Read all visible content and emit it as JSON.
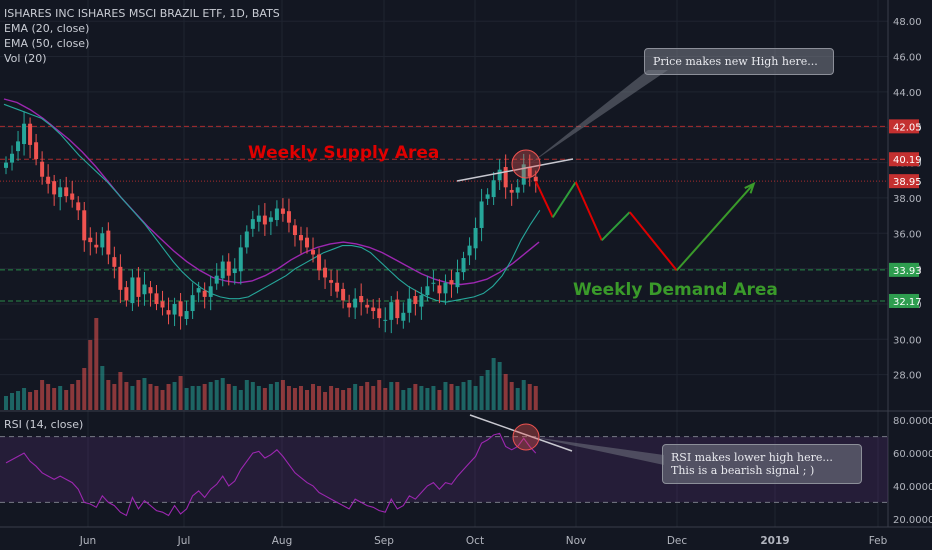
{
  "symbol": {
    "title": "ISHARES INC ISHARES MSCI BRAZIL ETF, 1D, BATS",
    "indicators": [
      "EMA (20, close)",
      "EMA (50, close)",
      "Vol (20)"
    ],
    "rsi_label": "RSI (14, close)"
  },
  "annotations": {
    "supply": "Weekly Supply Area",
    "demand": "Weekly Demand Area",
    "price_note": "Price makes new High here...",
    "rsi_note_line1": "RSI makes lower high here...",
    "rsi_note_line2": "This is a bearish signal ; )"
  },
  "colors": {
    "background": "#131722",
    "up": "#26a69a",
    "down": "#ef5350",
    "ema20": "#26a69a",
    "ema50": "#9c27b0",
    "supply_text": "#e00000",
    "demand_text": "#3a9a2a",
    "level_red": "#c43030",
    "level_green": "#2e9d4f",
    "rsi_line": "#9c27b0"
  },
  "chart_data": [
    {
      "type": "candlestick",
      "price_axis": {
        "ticks": [
          "48.00",
          "46.00",
          "44.00",
          "42.00",
          "40.00",
          "38.00",
          "36.00",
          "34.00",
          "32.00",
          "30.00",
          "28.00"
        ],
        "range": [
          26.0,
          49.2
        ]
      },
      "time_axis": {
        "labels": [
          "Jun",
          "Jul",
          "Aug",
          "Sep",
          "Oct",
          "Nov",
          "Dec",
          "2019",
          "Feb"
        ]
      },
      "levels": [
        {
          "value": 42.05,
          "label": "42.05",
          "color": "#c43030",
          "style": "dashed"
        },
        {
          "value": 40.19,
          "label": "40.19",
          "color": "#c43030",
          "style": "dashed"
        },
        {
          "value": 38.95,
          "label": "38.95",
          "color": "#c43030",
          "style": "dotted"
        },
        {
          "value": 33.93,
          "label": "33.93",
          "color": "#2e9d4f",
          "style": "dashed"
        },
        {
          "value": 32.17,
          "label": "32.17",
          "color": "#2e9d4f",
          "style": "dashed"
        }
      ],
      "closes": [
        40.0,
        40.5,
        41.2,
        42.2,
        41.0,
        40.2,
        39.2,
        38.8,
        38.2,
        38.6,
        38.1,
        37.9,
        37.3,
        35.6,
        35.5,
        35.2,
        36.0,
        34.8,
        34.1,
        32.8,
        32.2,
        33.5,
        32.4,
        33.1,
        32.6,
        32.0,
        31.8,
        31.4,
        32.0,
        31.3,
        31.6,
        32.5,
        32.9,
        32.4,
        33.0,
        33.6,
        34.4,
        33.6,
        34.0,
        35.2,
        36.1,
        36.8,
        37.0,
        36.5,
        36.9,
        37.4,
        37.1,
        36.6,
        35.9,
        35.6,
        35.2,
        34.8,
        33.9,
        33.5,
        33.2,
        32.7,
        32.2,
        31.8,
        32.3,
        32.1,
        31.8,
        31.6,
        31.2,
        31.1,
        32.1,
        31.2,
        31.5,
        32.3,
        32.0,
        32.5,
        33.0,
        33.2,
        32.6,
        33.2,
        33.1,
        33.8,
        34.6,
        35.3,
        36.3,
        37.8,
        38.2,
        39.0,
        39.6,
        38.6,
        38.3,
        38.6,
        39.9,
        39.2,
        38.95
      ],
      "ema20": [
        43.3,
        43.1,
        42.9,
        42.7,
        42.5,
        42.1,
        41.6,
        41.0,
        40.4,
        39.9,
        39.4,
        38.9,
        38.3,
        37.7,
        37.1,
        36.5,
        35.8,
        35.1,
        34.4,
        33.8,
        33.3,
        32.9,
        32.6,
        32.4,
        32.3,
        32.3,
        32.4,
        32.7,
        33.0,
        33.3,
        33.6,
        34.0,
        34.3,
        34.6,
        34.9,
        35.1,
        35.3,
        35.3,
        35.2,
        34.9,
        34.4,
        33.9,
        33.4,
        33.0,
        32.7,
        32.4,
        32.2,
        32.1,
        32.2,
        32.3,
        32.4,
        32.6,
        33.0,
        33.6,
        34.5,
        35.6,
        36.5,
        37.3
      ],
      "ema20_x": [
        0,
        10,
        20,
        30,
        40,
        50,
        60,
        70,
        80,
        90,
        100,
        110,
        120,
        130,
        140,
        150,
        160,
        170,
        180,
        190,
        200,
        210,
        220,
        230,
        240,
        250,
        260,
        270,
        280,
        290,
        300,
        310,
        320,
        330,
        340,
        350,
        360,
        370,
        380,
        390,
        400,
        410,
        420,
        430,
        440,
        450,
        460,
        470,
        480,
        490,
        500,
        510,
        520,
        530,
        540,
        550,
        560,
        570
      ],
      "ema50": [
        43.6,
        43.4,
        43.0,
        42.5,
        41.9,
        41.3,
        40.6,
        39.8,
        38.9,
        38.0,
        37.2,
        36.4,
        35.7,
        35.0,
        34.4,
        33.9,
        33.5,
        33.3,
        33.2,
        33.3,
        33.6,
        34.0,
        34.5,
        34.9,
        35.2,
        35.4,
        35.5,
        35.4,
        35.2,
        34.9,
        34.5,
        34.1,
        33.7,
        33.4,
        33.2,
        33.1,
        33.2,
        33.4,
        33.8,
        34.3,
        34.9,
        35.5
      ],
      "ema50_x": [
        0,
        15,
        30,
        45,
        60,
        75,
        90,
        105,
        120,
        135,
        150,
        165,
        180,
        195,
        210,
        225,
        240,
        255,
        270,
        285,
        300,
        315,
        330,
        345,
        360,
        375,
        390,
        405,
        420,
        435,
        450,
        465,
        480,
        495,
        510,
        525,
        540,
        555,
        570,
        585,
        600,
        615
      ],
      "volume": [
        14,
        17,
        19,
        22,
        18,
        20,
        30,
        26,
        22,
        24,
        20,
        26,
        30,
        42,
        70,
        92,
        44,
        30,
        26,
        38,
        28,
        24,
        30,
        32,
        26,
        24,
        20,
        26,
        28,
        34,
        22,
        24,
        24,
        26,
        28,
        30,
        32,
        26,
        24,
        20,
        30,
        28,
        24,
        22,
        26,
        28,
        30,
        24,
        22,
        24,
        20,
        26,
        24,
        18,
        24,
        22,
        20,
        22,
        26,
        24,
        28,
        24,
        30,
        22,
        28,
        28,
        20,
        22,
        26,
        24,
        22,
        24,
        20,
        28,
        26,
        24,
        28,
        30,
        24,
        34,
        40,
        52,
        48,
        36,
        28,
        22,
        30,
        26,
        24
      ],
      "projection": [
        {
          "x_offset": 0,
          "price": 38.95
        },
        {
          "x_offset": 17,
          "price": 36.9
        },
        {
          "x_offset": 40,
          "price": 38.9
        },
        {
          "x_offset": 66,
          "price": 35.6
        },
        {
          "x_offset": 94,
          "price": 37.2
        },
        {
          "x_offset": 141,
          "price": 33.9
        },
        {
          "x_offset": 218,
          "price": 38.8
        }
      ]
    },
    {
      "type": "line",
      "name": "RSI (14, close)",
      "y_axis": {
        "ticks": [
          "80.0000",
          "60.0000",
          "40.0000",
          "20.0000"
        ],
        "range": [
          15,
          85
        ]
      },
      "bands": [
        70,
        30
      ],
      "values": [
        54,
        56,
        58,
        60,
        55,
        52,
        48,
        46,
        44,
        46,
        44,
        42,
        38,
        30,
        29,
        27,
        34,
        30,
        28,
        24,
        22,
        33,
        26,
        31,
        28,
        25,
        24,
        22,
        28,
        23,
        26,
        34,
        37,
        33,
        38,
        41,
        46,
        40,
        43,
        50,
        55,
        60,
        61,
        57,
        59,
        62,
        58,
        53,
        48,
        45,
        42,
        40,
        36,
        34,
        32,
        30,
        28,
        26,
        32,
        30,
        28,
        27,
        25,
        24,
        32,
        26,
        28,
        34,
        32,
        36,
        40,
        42,
        38,
        42,
        41,
        46,
        50,
        54,
        58,
        66,
        68,
        71,
        72,
        64,
        62,
        64,
        69,
        64,
        60
      ]
    }
  ]
}
